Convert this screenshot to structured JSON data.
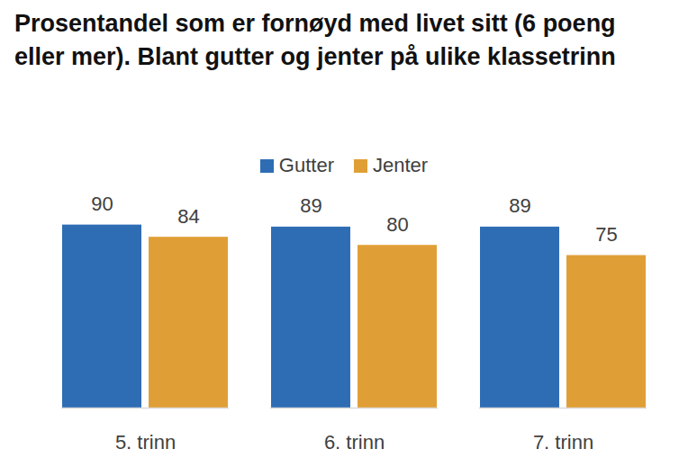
{
  "chart_data": {
    "type": "bar",
    "title": "Prosentandel som er fornøyd med livet sitt (6 poeng eller mer). Blant gutter og jenter på ulike klassetrinn",
    "categories": [
      "5. trinn",
      "6. trinn",
      "7. trinn"
    ],
    "series": [
      {
        "name": "Gutter",
        "color": "#2E6DB4",
        "values": [
          90,
          89,
          89
        ]
      },
      {
        "name": "Jenter",
        "color": "#E09F36",
        "values": [
          84,
          80,
          75
        ]
      }
    ],
    "ylim": [
      0,
      100
    ],
    "data_labels": true,
    "tick_labels": "x",
    "legend": "top",
    "grid": false
  }
}
